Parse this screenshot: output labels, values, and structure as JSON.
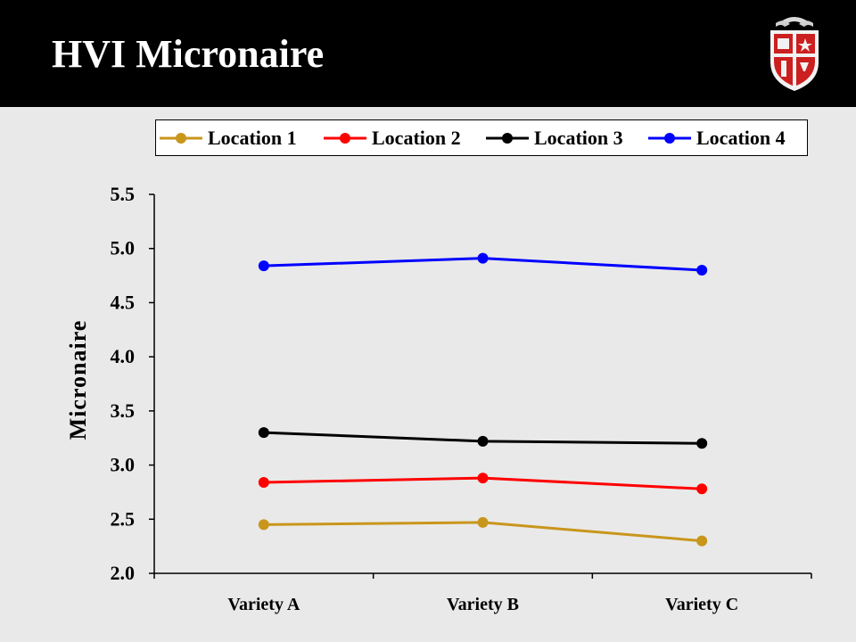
{
  "slide": {
    "title": "HVI Micronaire"
  },
  "chart_data": {
    "type": "line",
    "title": "",
    "xlabel": "",
    "ylabel": "Micronaire",
    "categories": [
      "Variety A",
      "Variety B",
      "Variety C"
    ],
    "ylim": [
      2.0,
      5.5
    ],
    "yticks": [
      "2.0",
      "2.5",
      "3.0",
      "3.5",
      "4.0",
      "4.5",
      "5.0",
      "5.5"
    ],
    "grid": false,
    "legend": "top",
    "series": [
      {
        "name": "Location 1",
        "color": "#c9961c",
        "values": [
          2.45,
          2.47,
          2.3
        ]
      },
      {
        "name": "Location 2",
        "color": "#ff0000",
        "values": [
          2.84,
          2.88,
          2.78
        ]
      },
      {
        "name": "Location 3",
        "color": "#000000",
        "values": [
          3.3,
          3.22,
          3.2
        ]
      },
      {
        "name": "Location 4",
        "color": "#0000ff",
        "values": [
          4.84,
          4.91,
          4.8
        ]
      }
    ]
  }
}
